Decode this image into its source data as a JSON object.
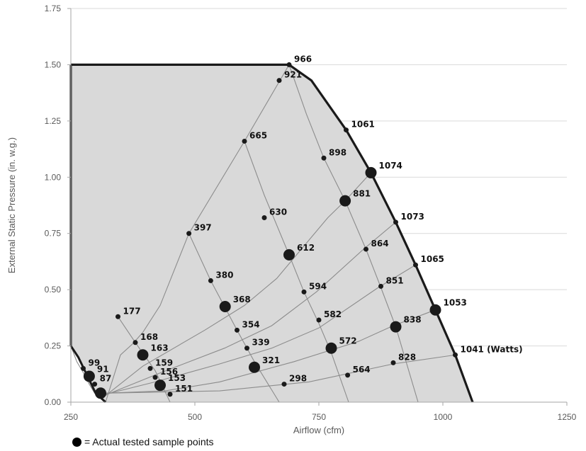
{
  "chart_data": {
    "type": "scatter",
    "xlabel": "Airflow (cfm)",
    "ylabel": "External Static Pressure (in. w.g.)",
    "xlim": [
      250,
      1250
    ],
    "ylim": [
      0,
      1.75
    ],
    "x_ticks": [
      "250",
      "500",
      "750",
      "1000",
      "1250"
    ],
    "y_ticks": [
      "0.00",
      "0.25",
      "0.50",
      "0.75",
      "1.00",
      "1.25",
      "1.50",
      "1.75"
    ],
    "grid": "horizontal",
    "colors": {
      "region_fill": "#d9d9d9",
      "boundary": "#1a1a1a",
      "curves": "#8c8c8c",
      "points": "#1a1a1a"
    },
    "legend_text": "= Actual tested sample points",
    "operating_region": [
      [
        250,
        1.5
      ],
      [
        690,
        1.5
      ],
      [
        735,
        1.43
      ],
      [
        805,
        1.21
      ],
      [
        855,
        1.02
      ],
      [
        905,
        0.8
      ],
      [
        945,
        0.61
      ],
      [
        985,
        0.41
      ],
      [
        1025,
        0.21
      ],
      [
        1060,
        0.0
      ],
      [
        320,
        0.0
      ],
      [
        300,
        0.04
      ],
      [
        265,
        0.2
      ],
      [
        250,
        0.25
      ]
    ],
    "curves": [
      [
        [
          320,
          0.0
        ],
        [
          298,
          0.04
        ],
        [
          287,
          0.08
        ],
        [
          278,
          0.12
        ],
        [
          262,
          0.18
        ],
        [
          250,
          0.25
        ]
      ],
      [
        [
          320,
          0.0
        ],
        [
          350,
          0.21
        ],
        [
          375,
          0.26
        ],
        [
          395,
          0.31
        ],
        [
          430,
          0.43
        ],
        [
          488,
          0.75
        ],
        [
          600,
          1.16
        ],
        [
          690,
          1.5
        ]
      ],
      [
        [
          315,
          0.02
        ],
        [
          395,
          0.16
        ],
        [
          520,
          0.32
        ],
        [
          600,
          0.43
        ],
        [
          665,
          0.55
        ],
        [
          768,
          0.82
        ],
        [
          805,
          0.9
        ],
        [
          855,
          1.02
        ]
      ],
      [
        [
          318,
          0.03
        ],
        [
          430,
          0.13
        ],
        [
          560,
          0.24
        ],
        [
          655,
          0.34
        ],
        [
          745,
          0.49
        ],
        [
          840,
          0.68
        ],
        [
          905,
          0.8
        ]
      ],
      [
        [
          320,
          0.035
        ],
        [
          420,
          0.09
        ],
        [
          550,
          0.17
        ],
        [
          655,
          0.24
        ],
        [
          750,
          0.33
        ],
        [
          870,
          0.51
        ],
        [
          945,
          0.61
        ]
      ],
      [
        [
          320,
          0.04
        ],
        [
          440,
          0.05
        ],
        [
          550,
          0.09
        ],
        [
          700,
          0.18
        ],
        [
          830,
          0.27
        ],
        [
          900,
          0.34
        ],
        [
          985,
          0.41
        ]
      ],
      [
        [
          320,
          0.04
        ],
        [
          550,
          0.05
        ],
        [
          730,
          0.09
        ],
        [
          900,
          0.17
        ],
        [
          1025,
          0.21
        ]
      ],
      [
        [
          345,
          0.38
        ],
        [
          380,
          0.265
        ],
        [
          420,
          0.14
        ],
        [
          450,
          0.0
        ]
      ],
      [
        [
          488,
          0.75
        ],
        [
          532,
          0.54
        ],
        [
          561,
          0.42
        ],
        [
          585,
          0.32
        ],
        [
          620,
          0.18
        ],
        [
          670,
          0.0
        ]
      ],
      [
        [
          600,
          1.16
        ],
        [
          640,
          0.92
        ],
        [
          690,
          0.655
        ],
        [
          720,
          0.49
        ],
        [
          750,
          0.35
        ],
        [
          775,
          0.22
        ],
        [
          810,
          0.0
        ]
      ],
      [
        [
          690,
          1.5
        ],
        [
          725,
          1.28
        ],
        [
          760,
          1.085
        ],
        [
          803,
          0.895
        ],
        [
          845,
          0.68
        ],
        [
          875,
          0.51
        ],
        [
          905,
          0.335
        ],
        [
          950,
          0.0
        ]
      ]
    ],
    "points": [
      {
        "x": 690,
        "y": 1.5,
        "label": "966",
        "size": "small"
      },
      {
        "x": 670,
        "y": 1.43,
        "label": "921",
        "size": "small"
      },
      {
        "x": 805,
        "y": 1.21,
        "label": "1061",
        "size": "small"
      },
      {
        "x": 600,
        "y": 1.16,
        "label": "665",
        "size": "small"
      },
      {
        "x": 760,
        "y": 1.085,
        "label": "898",
        "size": "small"
      },
      {
        "x": 855,
        "y": 1.02,
        "label": "1074",
        "size": "large"
      },
      {
        "x": 803,
        "y": 0.895,
        "label": "881",
        "size": "large"
      },
      {
        "x": 640,
        "y": 0.82,
        "label": "630",
        "size": "small"
      },
      {
        "x": 905,
        "y": 0.8,
        "label": "1073",
        "size": "small"
      },
      {
        "x": 488,
        "y": 0.75,
        "label": "397",
        "size": "small"
      },
      {
        "x": 845,
        "y": 0.68,
        "label": "864",
        "size": "small"
      },
      {
        "x": 690,
        "y": 0.655,
        "label": "612",
        "size": "large"
      },
      {
        "x": 945,
        "y": 0.61,
        "label": "1065",
        "size": "small"
      },
      {
        "x": 532,
        "y": 0.54,
        "label": "380",
        "size": "small"
      },
      {
        "x": 875,
        "y": 0.515,
        "label": "851",
        "size": "small"
      },
      {
        "x": 720,
        "y": 0.49,
        "label": "594",
        "size": "small"
      },
      {
        "x": 561,
        "y": 0.425,
        "label": "368",
        "size": "large"
      },
      {
        "x": 985,
        "y": 0.41,
        "label": "1053",
        "size": "large"
      },
      {
        "x": 345,
        "y": 0.38,
        "label": "177",
        "size": "small"
      },
      {
        "x": 750,
        "y": 0.365,
        "label": "582",
        "size": "small"
      },
      {
        "x": 585,
        "y": 0.32,
        "label": "354",
        "size": "small"
      },
      {
        "x": 905,
        "y": 0.335,
        "label": "838",
        "size": "large"
      },
      {
        "x": 380,
        "y": 0.265,
        "label": "168",
        "size": "small"
      },
      {
        "x": 775,
        "y": 0.24,
        "label": "572",
        "size": "large"
      },
      {
        "x": 605,
        "y": 0.24,
        "label": "339",
        "size": "small"
      },
      {
        "x": 1025,
        "y": 0.21,
        "label": "1041 (Watts)",
        "size": "small"
      },
      {
        "x": 395,
        "y": 0.21,
        "label": "163",
        "size": "large"
      },
      {
        "x": 900,
        "y": 0.175,
        "label": "828",
        "size": "small"
      },
      {
        "x": 620,
        "y": 0.155,
        "label": "321",
        "size": "large"
      },
      {
        "x": 410,
        "y": 0.15,
        "label": "159",
        "size": "small"
      },
      {
        "x": 275,
        "y": 0.15,
        "label": "99",
        "size": "small"
      },
      {
        "x": 420,
        "y": 0.11,
        "label": "156",
        "size": "small"
      },
      {
        "x": 808,
        "y": 0.12,
        "label": "564",
        "size": "small"
      },
      {
        "x": 287,
        "y": 0.115,
        "label": "91",
        "size": "large"
      },
      {
        "x": 298,
        "y": 0.08,
        "label": "87",
        "size": "small"
      },
      {
        "x": 430,
        "y": 0.075,
        "label": "153",
        "size": "large"
      },
      {
        "x": 680,
        "y": 0.08,
        "label": "298",
        "size": "small"
      },
      {
        "x": 310,
        "y": 0.04,
        "label": "",
        "size": "large"
      },
      {
        "x": 450,
        "y": 0.035,
        "label": "151",
        "size": "small"
      }
    ]
  }
}
